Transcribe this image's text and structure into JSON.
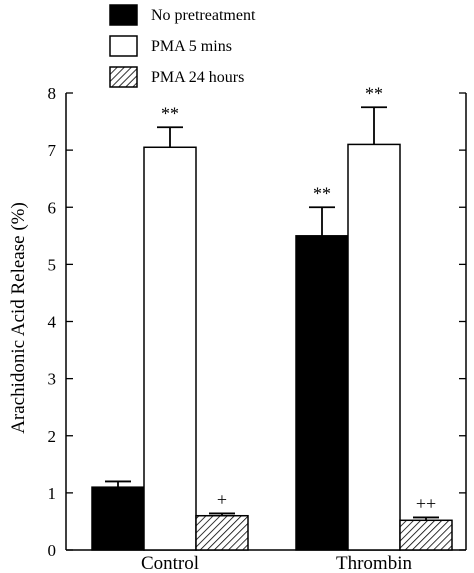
{
  "chart_data": {
    "type": "bar",
    "title": "",
    "xlabel": "",
    "ylabel": "Arachidonic Acid Release (%)",
    "categories": [
      "Control",
      "Thrombin"
    ],
    "ylim": [
      0,
      8
    ],
    "yticks": [
      "0",
      "1",
      "2",
      "3",
      "4",
      "5",
      "6",
      "7",
      "8"
    ],
    "grid": false,
    "legend_position": "top",
    "series": [
      {
        "name": "No pretreatment",
        "fill": "solid-black",
        "values": [
          1.1,
          5.5
        ],
        "errors": [
          0.1,
          0.5
        ],
        "annotations": [
          "",
          "**"
        ]
      },
      {
        "name": "PMA 5 mins",
        "fill": "white",
        "values": [
          7.05,
          7.1
        ],
        "errors": [
          0.35,
          0.65
        ],
        "annotations": [
          "**",
          "**"
        ]
      },
      {
        "name": "PMA 24 hours",
        "fill": "diagonal-hatch",
        "values": [
          0.6,
          0.52
        ],
        "errors": [
          0.04,
          0.05
        ],
        "annotations": [
          "+",
          "++"
        ]
      }
    ]
  }
}
